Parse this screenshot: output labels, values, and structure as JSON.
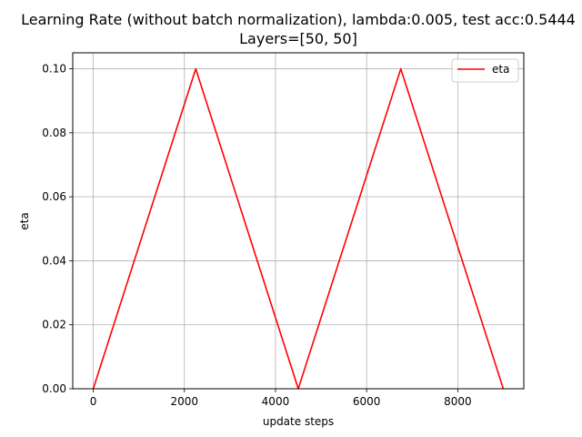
{
  "chart_data": {
    "type": "line",
    "title": "Learning Rate (without batch normalization), lambda:0.005, test acc:0.5444",
    "subtitle": "Layers=[50, 50]",
    "xlabel": "update steps",
    "ylabel": "eta",
    "xlim": [
      -450,
      9450
    ],
    "ylim": [
      0,
      0.105
    ],
    "xticks": [
      0,
      2000,
      4000,
      6000,
      8000
    ],
    "xtick_labels": [
      "0",
      "2000",
      "4000",
      "6000",
      "8000"
    ],
    "yticks": [
      0.0,
      0.02,
      0.04,
      0.06,
      0.08,
      0.1
    ],
    "ytick_labels": [
      "0.00",
      "0.02",
      "0.04",
      "0.06",
      "0.08",
      "0.10"
    ],
    "grid": true,
    "legend_position": "top-right",
    "series": [
      {
        "name": "eta",
        "color": "#ff0000",
        "x": [
          0,
          2250,
          4500,
          6750,
          9000
        ],
        "y": [
          0.0,
          0.1,
          0.0,
          0.1,
          0.0
        ]
      }
    ]
  }
}
